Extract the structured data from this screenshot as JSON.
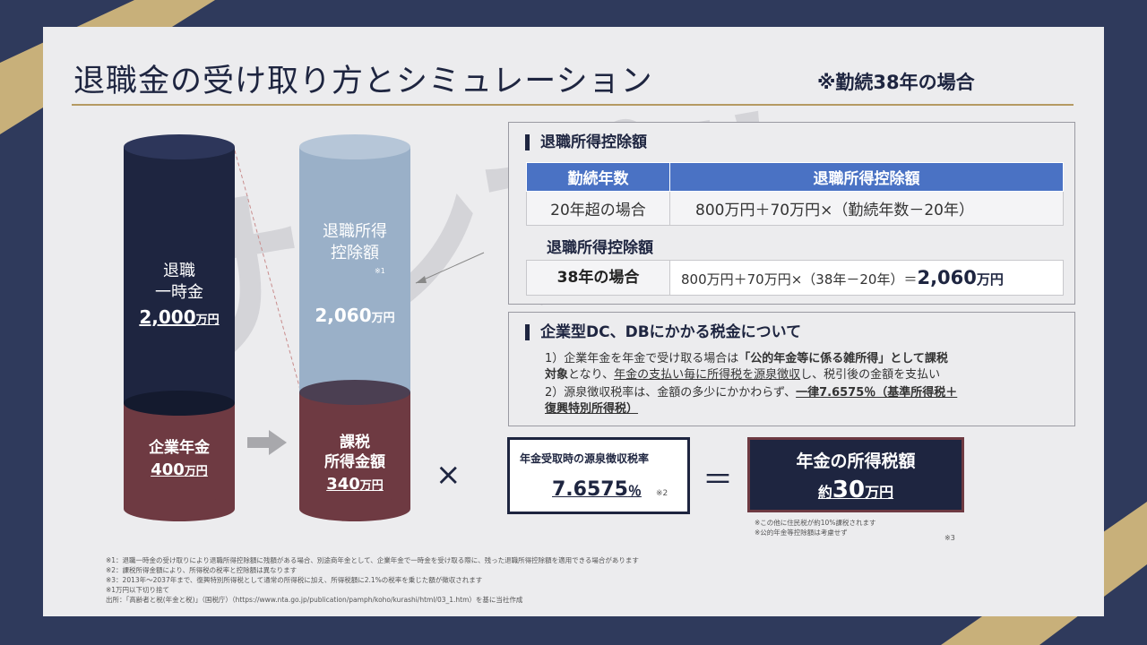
{
  "title": "退職金の受け取り方とシミュレーション",
  "subtitle": "※勤続38年の場合",
  "watermark": "サンプル",
  "colors": {
    "navy": "#1e2540",
    "maroon": "#6e3a42",
    "light_blue": "#9ab0c8",
    "accent_blue": "#4a72c4",
    "gold": "#c8b07a"
  },
  "left_cylinder": {
    "top_label_1": "退職",
    "top_label_2": "一時金",
    "top_value": "2,000",
    "top_unit": "万円",
    "bottom_label": "企業年金",
    "bottom_value": "400",
    "bottom_unit": "万円"
  },
  "right_cylinder": {
    "top_label_1": "退職所得",
    "top_label_2": "控除額",
    "top_note": "※1",
    "top_value": "2,060",
    "top_unit": "万円",
    "bottom_label_1": "課税",
    "bottom_label_2": "所得金額",
    "bottom_value": "340",
    "bottom_unit": "万円"
  },
  "deduction_panel": {
    "heading": "退職所得控除額",
    "table_headers": [
      "勤続年数",
      "退職所得控除額"
    ],
    "table_row": [
      "20年超の場合",
      "800万円＋70万円×（勤続年数－20年）"
    ],
    "sub_heading": "退職所得控除額",
    "case_label": "38年の場合",
    "case_formula": "800万円＋70万円×（38年－20年）＝",
    "case_result": "2,060",
    "case_unit": "万円"
  },
  "tax_panel": {
    "heading": "企業型DC、DBにかかる税金について",
    "line1_a": "1）企業年金を年金で受け取る場合は",
    "line1_b": "「公的年金等に係る雑所得」として課税",
    "line2_a": "対象",
    "line2_b": "となり、",
    "line2_c": "年金の支払い毎に所得税を源泉徴収",
    "line2_d": "し、税引後の金額を支払い",
    "line3_a": "2）源泉徴収税率は、金額の多少にかかわらず、",
    "line3_b": "一律7.6575％（基準所得税＋",
    "line4": "復興特別所得税）"
  },
  "formula": {
    "times": "×",
    "equals": "＝",
    "rate_label": "年金受取時の源泉徴収税率",
    "rate_value": "7.6575",
    "rate_unit": "％",
    "rate_note": "※2",
    "result_label": "年金の所得税額",
    "result_prefix": "約",
    "result_value": "30",
    "result_unit": "万円",
    "result_note1": "※この他に住民税が約10%課税されます",
    "result_note2": "※公的年金等控除額は考慮せず",
    "result_note3": "※3"
  },
  "footnotes": [
    "※1：退職一時金の受け取りにより退職所得控除額に残額がある場合、別途商年金として、企業年金で一時金を受け取る際に、残った退職所得控除額を適用できる場合があります",
    "※2：課税所得金額により、所得税の税率と控除額は異なります",
    "※3：2013年～2037年まで、復興特別所得税として通常の所得税に加え、所得税額に2.1%の税率を乗じた額が徴収されます",
    "※1万円以下切り捨て",
    "出所：「高齢者と税(年金と税)」（国税庁）（https://www.nta.go.jp/publication/pamph/koho/kurashi/html/03_1.htm）を基に当社作成"
  ]
}
